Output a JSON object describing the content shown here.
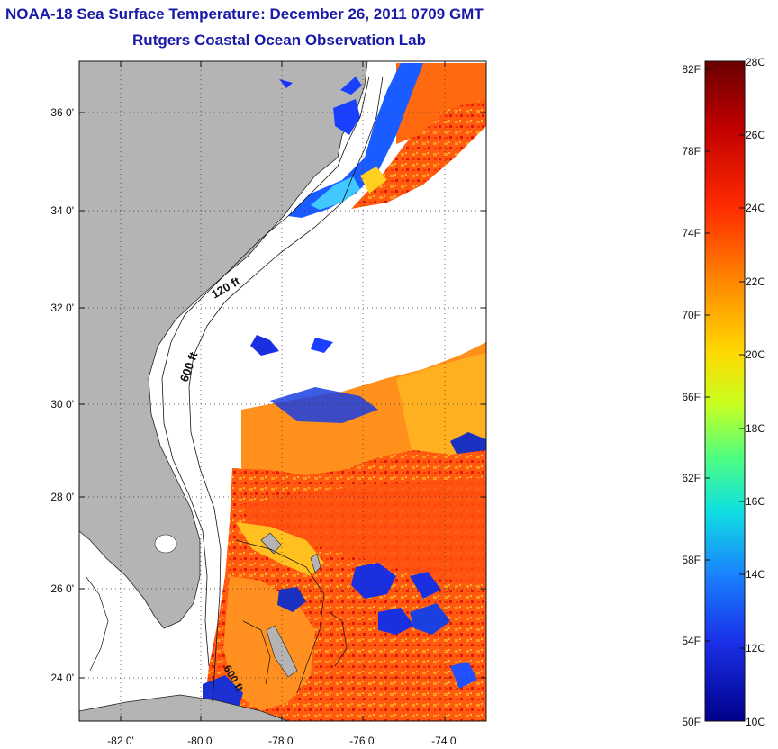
{
  "title_line1": "NOAA-18 Sea Surface Temperature:  December 26, 2011 0709 GMT",
  "title_line2": "Rutgers Coastal Ocean Observation Lab",
  "latitude_ticks": [
    "36 0'",
    "34 0'",
    "32 0'",
    "30 0'",
    "28 0'",
    "26 0'",
    "24 0'"
  ],
  "longitude_ticks": [
    "-82 0'",
    "-80 0'",
    "-78 0'",
    "-76 0'",
    "-74 0'"
  ],
  "contour_labels": [
    "120 ft",
    "600 ft",
    "600 ft"
  ],
  "colorbar": {
    "fahrenheit_labels": [
      "82F",
      "78F",
      "74F",
      "70F",
      "66F",
      "62F",
      "58F",
      "54F",
      "50F"
    ],
    "celsius_labels": [
      "28C",
      "26C",
      "24C",
      "22C",
      "20C",
      "18C",
      "16C",
      "14C",
      "12C",
      "10C"
    ],
    "colors": [
      "#7a0000",
      "#d40000",
      "#ff4a00",
      "#ff9400",
      "#ffd400",
      "#b8ff30",
      "#20e0d0",
      "#1a8cff",
      "#1a30e0",
      "#00008f"
    ]
  },
  "colors": {
    "land": "#b4b4b4",
    "no_data": "#ffffff",
    "title": "#1a1aa8"
  }
}
